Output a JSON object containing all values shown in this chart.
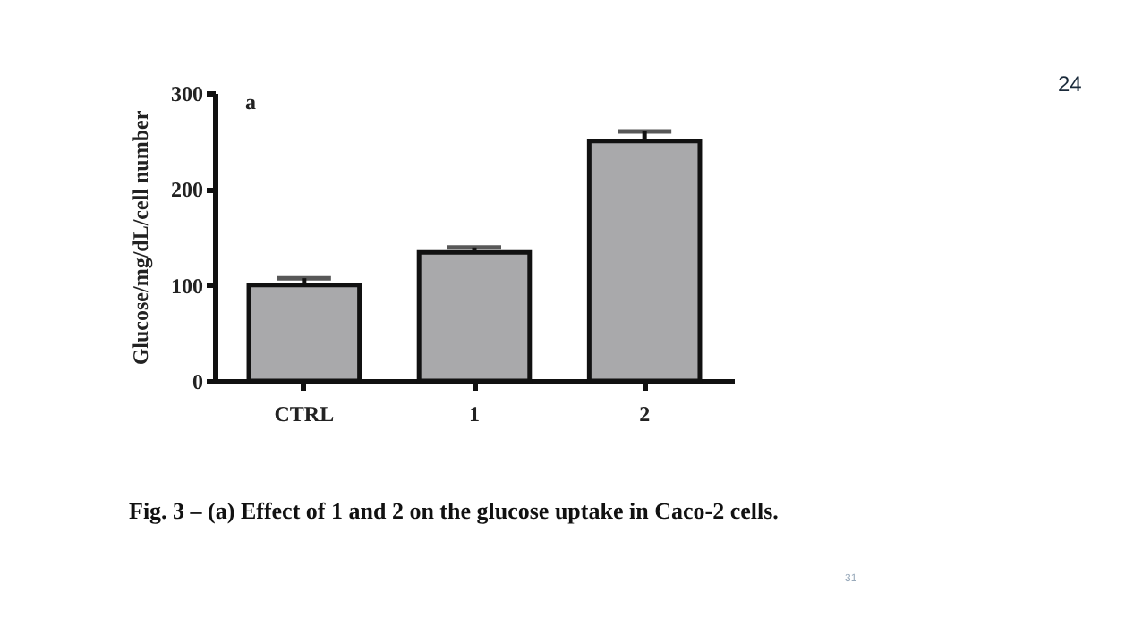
{
  "chart_data": {
    "type": "bar",
    "ylabel": "Glucose/mg/dL/cell number",
    "categories": [
      "CTRL",
      "1",
      "2"
    ],
    "values": [
      100,
      134,
      250
    ],
    "errors": [
      7,
      5,
      10
    ],
    "color": "#a9a9ab",
    "ylim": [
      0,
      300
    ],
    "yticks": [
      0,
      100,
      200,
      300
    ],
    "grid": false,
    "annotations": [
      "a",
      "Fig. 3 – (a) Effect of 1 and 2 on the glucose uptake in Caco-2 cells.",
      "24",
      "31"
    ]
  }
}
